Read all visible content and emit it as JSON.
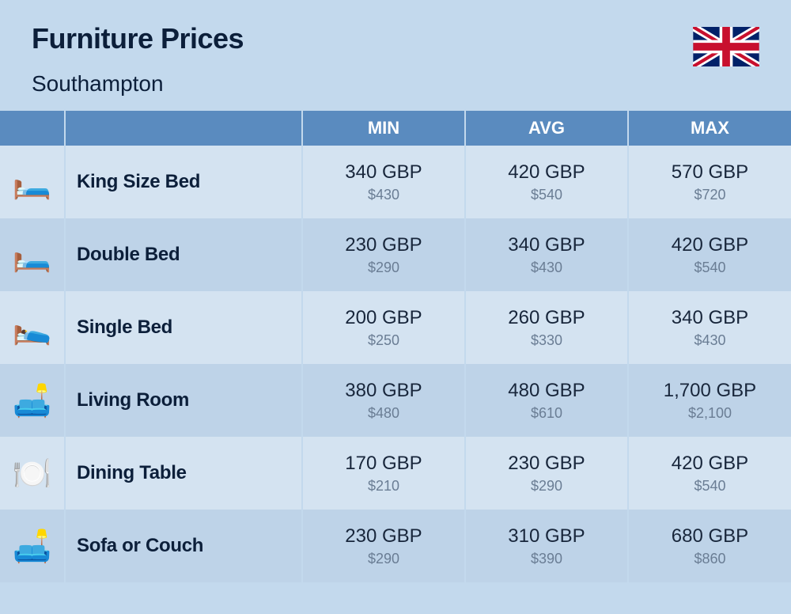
{
  "header": {
    "title": "Furniture Prices",
    "subtitle": "Southampton",
    "flag": "uk"
  },
  "table": {
    "columns": [
      "MIN",
      "AVG",
      "MAX"
    ],
    "header_bg": "#5a8bbf",
    "header_fg": "#ffffff",
    "row_bg_even": "#d4e3f1",
    "row_bg_odd": "#bed3e8",
    "primary_color": "#18263b",
    "secondary_color": "#6a7d94",
    "primary_fontsize": 24,
    "secondary_fontsize": 18,
    "name_fontsize": 24,
    "rows": [
      {
        "icon": "🛏️",
        "name": "King Size Bed",
        "min_p": "340 GBP",
        "min_s": "$430",
        "avg_p": "420 GBP",
        "avg_s": "$540",
        "max_p": "570 GBP",
        "max_s": "$720"
      },
      {
        "icon": "🛏️",
        "name": "Double Bed",
        "min_p": "230 GBP",
        "min_s": "$290",
        "avg_p": "340 GBP",
        "avg_s": "$430",
        "max_p": "420 GBP",
        "max_s": "$540"
      },
      {
        "icon": "🛌",
        "name": "Single Bed",
        "min_p": "200 GBP",
        "min_s": "$250",
        "avg_p": "260 GBP",
        "avg_s": "$330",
        "max_p": "340 GBP",
        "max_s": "$430"
      },
      {
        "icon": "🛋️",
        "name": "Living Room",
        "min_p": "380 GBP",
        "min_s": "$480",
        "avg_p": "480 GBP",
        "avg_s": "$610",
        "max_p": "1,700 GBP",
        "max_s": "$2,100"
      },
      {
        "icon": "🍽️",
        "name": "Dining Table",
        "min_p": "170 GBP",
        "min_s": "$210",
        "avg_p": "230 GBP",
        "avg_s": "$290",
        "max_p": "420 GBP",
        "max_s": "$540"
      },
      {
        "icon": "🛋️",
        "name": "Sofa or Couch",
        "min_p": "230 GBP",
        "min_s": "$290",
        "avg_p": "310 GBP",
        "avg_s": "$390",
        "max_p": "680 GBP",
        "max_s": "$860"
      }
    ]
  },
  "colors": {
    "page_bg": "#c3d9ed",
    "title_color": "#0c1f3a"
  }
}
